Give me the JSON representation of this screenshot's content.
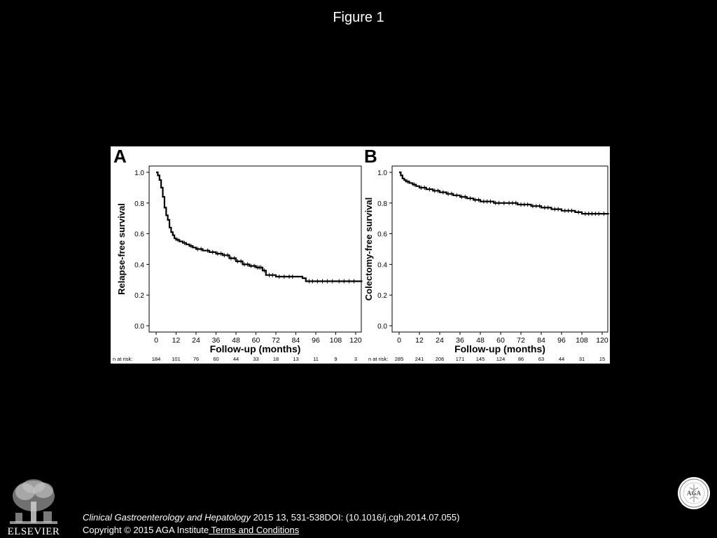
{
  "slide": {
    "title": "Figure 1",
    "citation_journal": "Clinical Gastroenterology and Hepatology",
    "citation_rest": " 2015 13, 531-538DOI: (10.1016/j.cgh.2014.07.055)",
    "copyright": "Copyright © 2015 AGA Institute",
    "terms_link": " Terms and Conditions",
    "elsevier_logo_text": "ELSEVIER",
    "aga_logo_text": "AGA"
  },
  "chart_data": [
    {
      "type": "line",
      "panel_label": "A",
      "title": "",
      "xlabel": "Follow-up (months)",
      "ylabel": "Relapse-free survival",
      "xlim": [
        -2,
        123
      ],
      "ylim": [
        -0.04,
        1.04
      ],
      "xticks": [
        0,
        12,
        24,
        36,
        48,
        60,
        72,
        84,
        96,
        108,
        120
      ],
      "yticks": [
        0.0,
        0.2,
        0.4,
        0.6,
        0.8,
        1.0
      ],
      "ytick_labels": [
        "0.0",
        "0.2",
        "0.4",
        "0.6",
        "0.8",
        "1.0"
      ],
      "grid": false,
      "risk_label": "n at risk:",
      "n_at_risk": [
        184,
        101,
        76,
        60,
        44,
        33,
        18,
        13,
        11,
        9,
        3
      ],
      "series": [
        {
          "step_x": [
            0,
            1,
            2,
            3,
            4,
            5,
            6,
            7,
            8,
            9,
            10,
            11,
            12,
            14,
            16,
            18,
            20,
            22,
            24,
            28,
            32,
            36,
            40,
            44,
            48,
            52,
            56,
            60,
            64,
            66,
            72,
            78,
            84,
            88,
            90,
            96,
            108,
            120,
            124
          ],
          "step_y": [
            1.0,
            0.98,
            0.95,
            0.9,
            0.84,
            0.77,
            0.72,
            0.69,
            0.64,
            0.61,
            0.59,
            0.57,
            0.56,
            0.55,
            0.54,
            0.53,
            0.52,
            0.51,
            0.5,
            0.49,
            0.48,
            0.47,
            0.46,
            0.44,
            0.42,
            0.4,
            0.39,
            0.38,
            0.36,
            0.33,
            0.32,
            0.32,
            0.32,
            0.31,
            0.29,
            0.29,
            0.29,
            0.29,
            0.29
          ],
          "censor_x": [
            13,
            17,
            21,
            25,
            27,
            31,
            34,
            37,
            39,
            41,
            43,
            45,
            47,
            49,
            51,
            53,
            55,
            57,
            59,
            61,
            62,
            63,
            65,
            68,
            70,
            74,
            77,
            80,
            82,
            92,
            94,
            97,
            100,
            103,
            106,
            110,
            113,
            116,
            119
          ]
        }
      ]
    },
    {
      "type": "line",
      "panel_label": "B",
      "title": "",
      "xlabel": "Follow-up (months)",
      "ylabel": "Colectomy-free survival",
      "xlim": [
        -2,
        123
      ],
      "ylim": [
        -0.04,
        1.04
      ],
      "xticks": [
        0,
        12,
        24,
        36,
        48,
        60,
        72,
        84,
        96,
        108,
        120
      ],
      "yticks": [
        0.0,
        0.2,
        0.4,
        0.6,
        0.8,
        1.0
      ],
      "ytick_labels": [
        "0.0",
        "0.2",
        "0.4",
        "0.6",
        "0.8",
        "1.0"
      ],
      "grid": false,
      "risk_label": "n at risk:",
      "n_at_risk": [
        285,
        241,
        206,
        171,
        145,
        124,
        86,
        63,
        44,
        31,
        15
      ],
      "series": [
        {
          "step_x": [
            0,
            1,
            2,
            3,
            4,
            6,
            8,
            10,
            12,
            16,
            20,
            24,
            28,
            32,
            36,
            40,
            44,
            48,
            56,
            60,
            64,
            70,
            78,
            84,
            90,
            96,
            104,
            108,
            120,
            124
          ],
          "step_y": [
            1.0,
            0.98,
            0.96,
            0.95,
            0.94,
            0.93,
            0.92,
            0.91,
            0.9,
            0.89,
            0.88,
            0.87,
            0.86,
            0.85,
            0.84,
            0.83,
            0.82,
            0.81,
            0.8,
            0.8,
            0.8,
            0.79,
            0.78,
            0.77,
            0.76,
            0.75,
            0.74,
            0.73,
            0.73,
            0.73
          ],
          "censor_x": [
            5,
            9,
            13,
            15,
            18,
            21,
            23,
            26,
            29,
            31,
            34,
            37,
            39,
            42,
            45,
            47,
            50,
            52,
            54,
            57,
            59,
            62,
            65,
            67,
            69,
            72,
            74,
            76,
            79,
            81,
            83,
            86,
            88,
            92,
            94,
            98,
            100,
            102,
            106,
            110,
            112,
            114,
            116,
            118,
            121
          ]
        }
      ]
    }
  ]
}
